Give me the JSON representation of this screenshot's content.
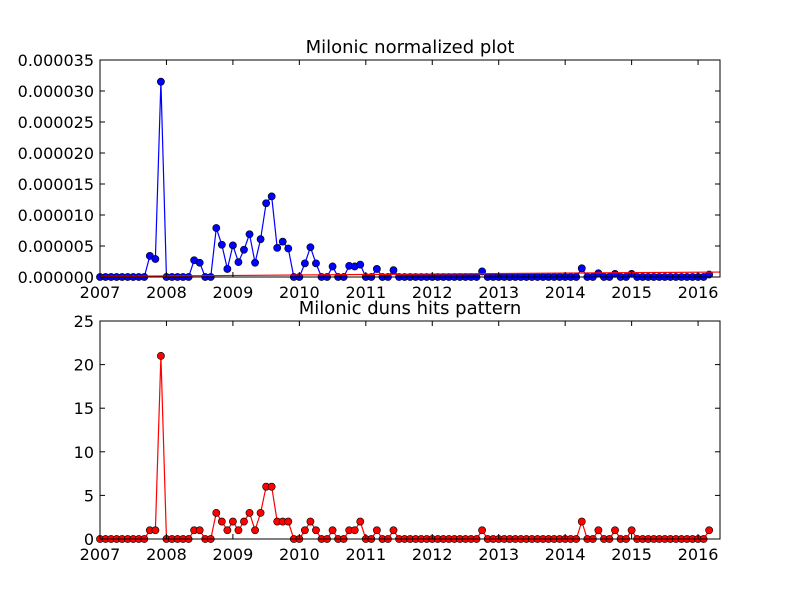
{
  "chart_data": [
    {
      "type": "line",
      "title": "Milonic normalized plot",
      "xlabel": "",
      "ylabel": "",
      "xlim": [
        2007.0,
        2016.33
      ],
      "ylim": [
        0,
        3.5e-05
      ],
      "x_ticks": [
        2007,
        2008,
        2009,
        2010,
        2011,
        2012,
        2013,
        2014,
        2015,
        2016
      ],
      "x_tick_labels": [
        "2007",
        "2008",
        "2009",
        "2010",
        "2011",
        "2012",
        "2013",
        "2014",
        "2015",
        "2016"
      ],
      "y_ticks": [
        0,
        5e-06,
        1e-05,
        1.5e-05,
        2e-05,
        2.5e-05,
        3e-05,
        3.5e-05
      ],
      "y_tick_labels": [
        "0.000000",
        "0.000005",
        "0.000010",
        "0.000015",
        "0.000020",
        "0.000025",
        "0.000030",
        "0.000035"
      ],
      "grid": false,
      "series": [
        {
          "color": "#0000ff",
          "marker_color": "#0000ff",
          "x_start": "2007-01",
          "x_step": "1 month",
          "values": [
            0,
            0,
            0,
            0,
            0,
            0,
            0,
            0,
            0,
            3.4e-06,
            2.9e-06,
            3.15e-05,
            0,
            0,
            0,
            0,
            0,
            2.7e-06,
            2.3e-06,
            0,
            0,
            7.9e-06,
            5.2e-06,
            1.3e-06,
            5.1e-06,
            2.4e-06,
            4.4e-06,
            6.9e-06,
            2.3e-06,
            6.1e-06,
            1.19e-05,
            1.3e-05,
            4.7e-06,
            5.7e-06,
            4.6e-06,
            0,
            0,
            2.2e-06,
            4.8e-06,
            2.2e-06,
            0,
            0,
            1.7e-06,
            0,
            0,
            1.8e-06,
            1.7e-06,
            2e-06,
            0,
            0,
            1.3e-06,
            0,
            0,
            1.1e-06,
            0,
            0,
            0,
            0,
            0,
            0,
            0,
            0,
            0,
            0,
            0,
            0,
            0,
            0,
            0,
            9e-07,
            0,
            0,
            0,
            0,
            0,
            0,
            0,
            0,
            0,
            0,
            0,
            0,
            0,
            0,
            0,
            0,
            0,
            1.4e-06,
            0,
            0,
            6e-07,
            0,
            0,
            5e-07,
            0,
            0,
            5e-07,
            0,
            0,
            0,
            0,
            0,
            0,
            0,
            0,
            0,
            0,
            0,
            0,
            0,
            4e-07
          ]
        },
        {
          "color": "#ff0000",
          "type": "trend",
          "x": [
            2007.0,
            2016.33
          ],
          "values": [
            1e-07,
            8e-07
          ]
        }
      ]
    },
    {
      "type": "line",
      "title": "Milonic duns hits pattern",
      "xlabel": "",
      "ylabel": "",
      "xlim": [
        2007.0,
        2016.33
      ],
      "ylim": [
        0,
        25
      ],
      "x_ticks": [
        2007,
        2008,
        2009,
        2010,
        2011,
        2012,
        2013,
        2014,
        2015,
        2016
      ],
      "x_tick_labels": [
        "2007",
        "2008",
        "2009",
        "2010",
        "2011",
        "2012",
        "2013",
        "2014",
        "2015",
        "2016"
      ],
      "y_ticks": [
        0,
        5,
        10,
        15,
        20,
        25
      ],
      "y_tick_labels": [
        "0",
        "5",
        "10",
        "15",
        "20",
        "25"
      ],
      "grid": false,
      "series": [
        {
          "color": "#ff0000",
          "marker_color": "#ff0000",
          "x_start": "2007-01",
          "x_step": "1 month",
          "values": [
            0,
            0,
            0,
            0,
            0,
            0,
            0,
            0,
            0,
            1,
            1,
            21,
            0,
            0,
            0,
            0,
            0,
            1,
            1,
            0,
            0,
            3,
            2,
            1,
            2,
            1,
            2,
            3,
            1,
            3,
            6,
            6,
            2,
            2,
            2,
            0,
            0,
            1,
            2,
            1,
            0,
            0,
            1,
            0,
            0,
            1,
            1,
            2,
            0,
            0,
            1,
            0,
            0,
            1,
            0,
            0,
            0,
            0,
            0,
            0,
            0,
            0,
            0,
            0,
            0,
            0,
            0,
            0,
            0,
            1,
            0,
            0,
            0,
            0,
            0,
            0,
            0,
            0,
            0,
            0,
            0,
            0,
            0,
            0,
            0,
            0,
            0,
            2,
            0,
            0,
            1,
            0,
            0,
            1,
            0,
            0,
            1,
            0,
            0,
            0,
            0,
            0,
            0,
            0,
            0,
            0,
            0,
            0,
            0,
            0,
            1
          ]
        }
      ]
    }
  ]
}
